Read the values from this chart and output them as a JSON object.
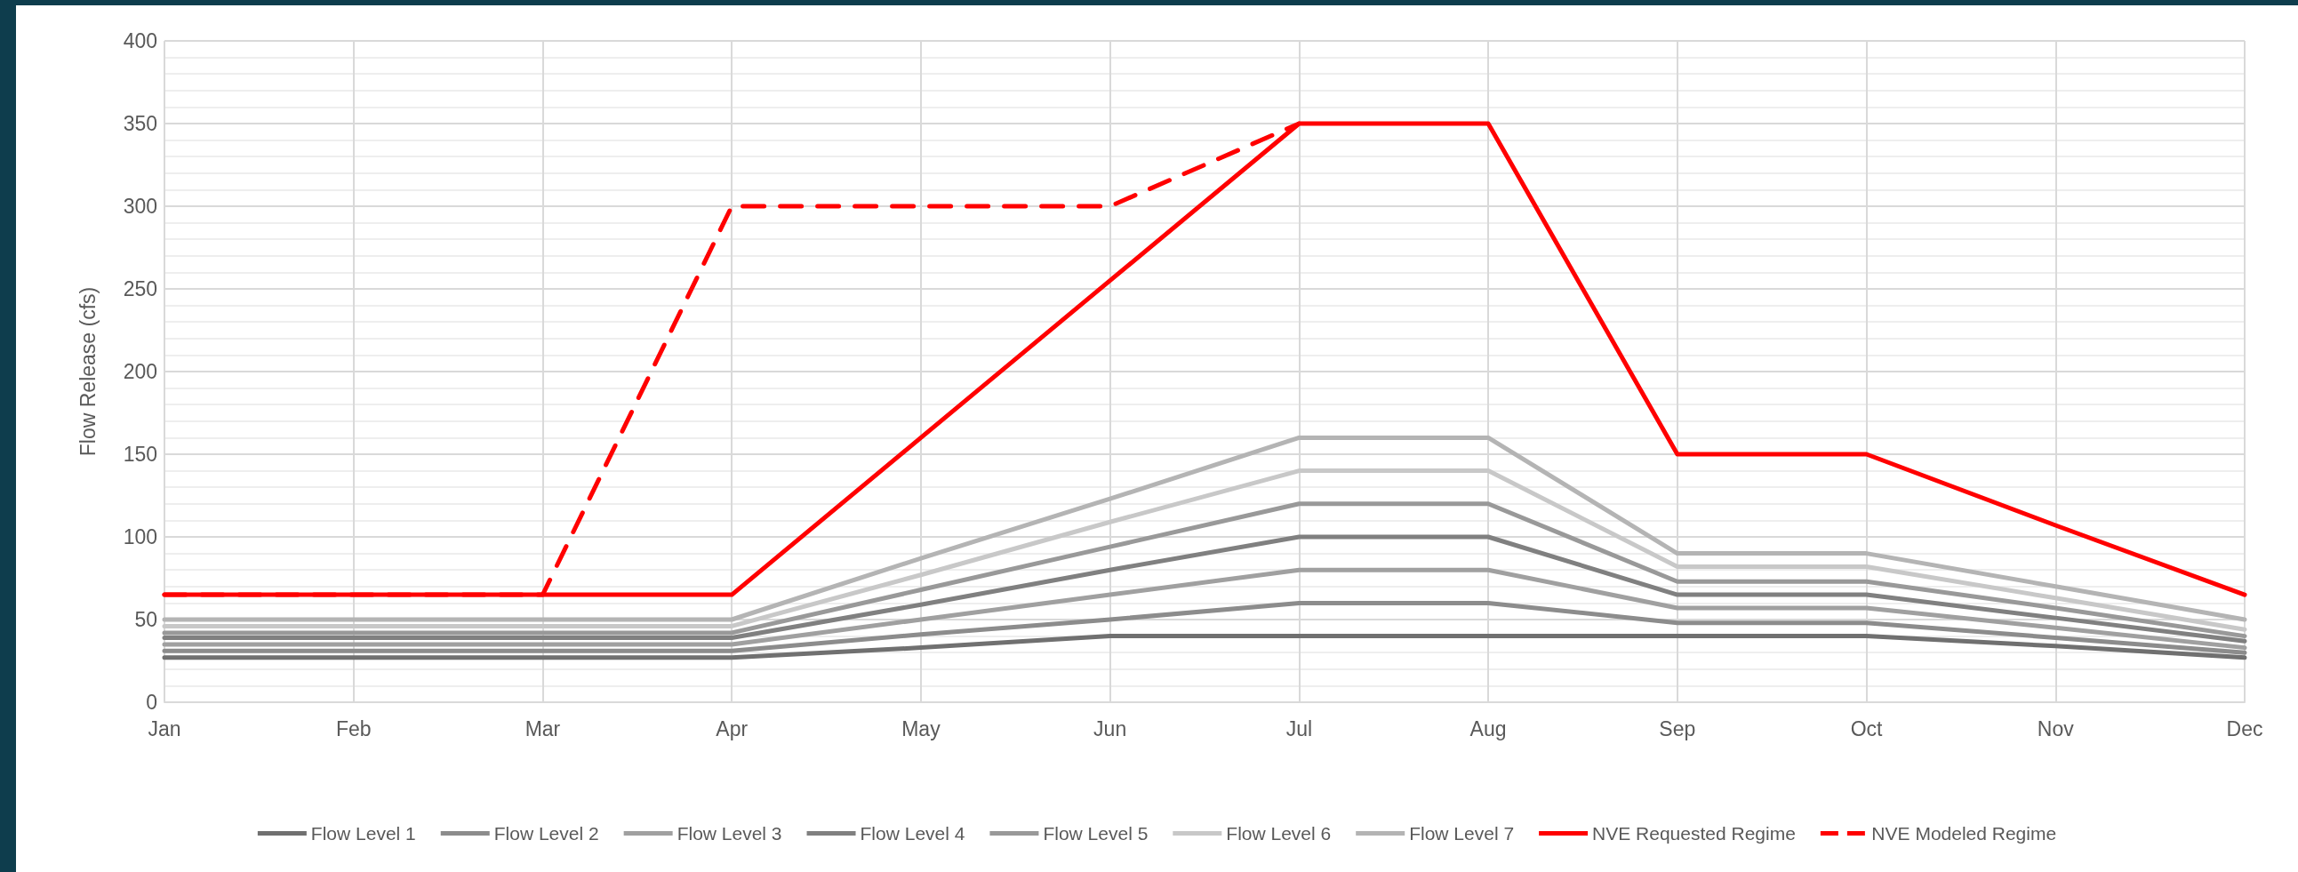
{
  "chart_data": {
    "type": "line",
    "ylabel": "Flow Release (cfs)",
    "categories": [
      "Jan",
      "Feb",
      "Mar",
      "Apr",
      "May",
      "Jun",
      "Jul",
      "Aug",
      "Sep",
      "Oct",
      "Nov",
      "Dec"
    ],
    "ylim": [
      0,
      400
    ],
    "yticks": [
      0,
      50,
      100,
      150,
      200,
      250,
      300,
      350,
      400
    ],
    "grid": true,
    "legend": "bottom",
    "marker": "none",
    "line_style": "solid",
    "series": [
      {
        "name": "Flow Level 1",
        "color": "#707070",
        "values": [
          27,
          27,
          27,
          27,
          33,
          40,
          40,
          40,
          40,
          40,
          34,
          27
        ]
      },
      {
        "name": "Flow Level 2",
        "color": "#8c8c8c",
        "values": [
          31,
          31,
          31,
          31,
          41,
          50,
          60,
          60,
          48,
          48,
          39,
          30
        ]
      },
      {
        "name": "Flow Level 3",
        "color": "#a0a0a0",
        "values": [
          35,
          35,
          35,
          35,
          50,
          65,
          80,
          80,
          57,
          57,
          45,
          33
        ]
      },
      {
        "name": "Flow Level 4",
        "color": "#808080",
        "values": [
          39,
          39,
          39,
          39,
          59,
          80,
          100,
          100,
          65,
          65,
          51,
          37
        ]
      },
      {
        "name": "Flow Level 5",
        "color": "#999999",
        "values": [
          42,
          42,
          42,
          42,
          68,
          94,
          120,
          120,
          73,
          73,
          57,
          40
        ]
      },
      {
        "name": "Flow Level 6",
        "color": "#c8c8c8",
        "values": [
          46,
          46,
          46,
          46,
          77,
          109,
          140,
          140,
          82,
          82,
          63,
          44
        ]
      },
      {
        "name": "Flow Level 7",
        "color": "#b4b4b4",
        "values": [
          50,
          50,
          50,
          50,
          87,
          123,
          160,
          160,
          90,
          90,
          70,
          50
        ]
      },
      {
        "name": "NVE Requested Regime",
        "color": "#ff0000",
        "values": [
          65,
          65,
          65,
          65,
          160,
          255,
          350,
          350,
          150,
          150,
          107,
          65
        ]
      },
      {
        "name": "NVE Modeled Regime",
        "color": "#ff0000",
        "line_style": "dashed",
        "values": [
          65,
          65,
          65,
          300,
          300,
          300,
          350,
          null,
          null,
          null,
          null,
          null
        ]
      }
    ]
  }
}
